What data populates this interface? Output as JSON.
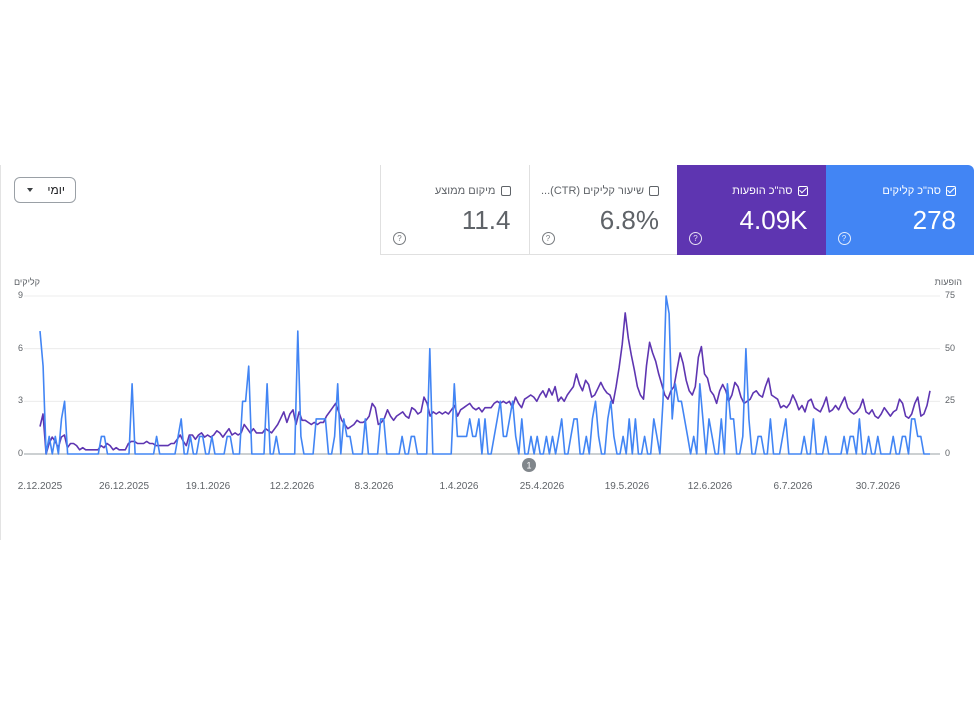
{
  "metrics": {
    "clicks": {
      "label": "סה\"כ קליקים",
      "value": "278",
      "checked": true,
      "color": "#4285f4"
    },
    "impressions": {
      "label": "סה\"כ הופעות",
      "value": "4.09K",
      "checked": true,
      "color": "#5e35b1"
    },
    "ctr": {
      "label": "...(CTR) שיעור קליקים",
      "value": "6.8%",
      "checked": false
    },
    "position": {
      "label": "מיקום ממוצע",
      "value": "11.4",
      "checked": false
    }
  },
  "help_glyph": "?",
  "dropdown": {
    "label": "יומי"
  },
  "chart_data": {
    "type": "line",
    "left_axis_title": "קליקים",
    "right_axis_title": "הופעות",
    "y_left_ticks": [
      "9",
      "6",
      "3",
      "0"
    ],
    "y_right_ticks": [
      "75",
      "50",
      "25",
      "0"
    ],
    "y_left_range": [
      0,
      9
    ],
    "y_right_range": [
      0,
      75
    ],
    "x_tick_labels": [
      "2.12.2025",
      "26.12.2025",
      "19.1.2026",
      "12.2.2026",
      "8.3.2026",
      "1.4.2026",
      "25.4.2026",
      "19.5.2026",
      "12.6.2026",
      "6.7.2026",
      "30.7.2026"
    ],
    "annotation": {
      "label": "1",
      "near": "25.4.2026"
    },
    "grid": true,
    "series": [
      {
        "name": "סה\"כ קליקים",
        "axis": "left",
        "color": "#4285f4",
        "values": [
          7,
          5,
          0,
          1,
          0,
          1,
          0,
          2,
          3,
          0,
          0,
          0,
          0,
          0,
          0,
          0,
          0,
          0,
          0,
          0,
          1,
          1,
          0,
          0,
          0,
          0,
          0,
          0,
          0,
          0,
          4,
          0,
          0,
          0,
          0,
          0,
          0,
          0,
          1,
          0,
          0,
          0,
          0,
          0,
          0,
          1,
          2,
          0,
          0,
          1,
          0,
          0,
          1,
          1,
          0,
          0,
          1,
          0,
          0,
          0,
          0,
          1,
          1,
          0,
          0,
          0,
          3,
          3,
          5,
          0,
          0,
          0,
          0,
          0,
          4,
          0,
          0,
          1,
          0,
          0,
          0,
          0,
          0,
          0,
          7,
          1,
          0,
          0,
          0,
          0,
          2,
          2,
          2,
          2,
          0,
          0,
          1,
          4,
          0,
          2,
          1,
          1,
          0,
          0,
          0,
          0,
          2,
          0,
          0,
          0,
          0,
          2,
          2,
          0,
          0,
          0,
          0,
          0,
          1,
          0,
          0,
          1,
          1,
          0,
          0,
          0,
          0,
          6,
          0,
          0,
          0,
          0,
          0,
          0,
          0,
          4,
          1,
          1,
          1,
          1,
          2,
          1,
          1,
          2,
          0,
          2,
          0,
          0,
          1,
          2,
          3,
          1,
          1,
          2,
          3,
          1,
          0,
          2,
          0,
          0,
          1,
          0,
          1,
          0,
          0,
          1,
          0,
          1,
          0,
          1,
          2,
          0,
          0,
          1,
          2,
          2,
          0,
          0,
          1,
          0,
          2,
          3,
          1,
          0,
          0,
          2,
          3,
          1,
          0,
          0,
          1,
          0,
          2,
          0,
          2,
          0,
          0,
          1,
          0,
          0,
          2,
          1,
          0,
          3,
          9,
          8,
          2,
          4,
          3,
          3,
          2,
          1,
          0,
          1,
          0,
          4,
          2,
          0,
          2,
          1,
          0,
          0,
          2,
          0,
          4,
          2,
          2,
          0,
          0,
          1,
          6,
          2,
          0,
          0,
          1,
          1,
          0,
          0,
          2,
          0,
          0,
          0,
          1,
          2,
          0,
          0,
          0,
          0,
          0,
          1,
          0,
          0,
          2,
          0,
          0,
          0,
          1,
          0,
          0,
          0,
          0,
          0,
          1,
          0,
          1,
          1,
          0,
          2,
          0,
          0,
          1,
          0,
          0,
          1,
          0,
          0,
          0,
          0,
          1,
          0,
          0,
          1,
          1,
          0,
          2,
          2,
          1,
          1,
          0,
          0,
          0
        ]
      },
      {
        "name": "סה\"כ הופעות",
        "axis": "right",
        "color": "#5e35b1",
        "values": [
          13,
          19,
          0,
          5,
          8,
          6,
          3,
          8,
          9,
          3,
          5,
          5,
          4,
          2,
          3,
          2,
          2,
          2,
          2,
          2,
          4,
          3,
          5,
          4,
          2,
          3,
          2,
          2,
          2,
          5,
          6,
          6,
          5,
          5,
          5,
          6,
          5,
          5,
          4,
          4,
          4,
          4,
          4,
          5,
          5,
          7,
          9,
          6,
          4,
          9,
          9,
          7,
          9,
          10,
          8,
          9,
          8,
          9,
          11,
          10,
          8,
          10,
          12,
          9,
          10,
          9,
          10,
          14,
          12,
          10,
          12,
          10,
          10,
          10,
          12,
          11,
          10,
          12,
          14,
          17,
          20,
          15,
          19,
          21,
          14,
          20,
          16,
          16,
          15,
          14,
          15,
          14,
          15,
          15,
          18,
          20,
          22,
          24,
          20,
          16,
          14,
          12,
          13,
          14,
          16,
          15,
          15,
          16,
          18,
          24,
          22,
          14,
          15,
          17,
          21,
          18,
          16,
          18,
          19,
          20,
          18,
          17,
          22,
          21,
          19,
          20,
          27,
          24,
          18,
          20,
          19,
          20,
          19,
          20,
          19,
          21,
          23,
          18,
          21,
          22,
          23,
          24,
          22,
          21,
          22,
          20,
          22,
          22,
          22,
          24,
          25,
          24,
          25,
          24,
          25,
          22,
          27,
          24,
          22,
          26,
          27,
          28,
          27,
          25,
          28,
          30,
          27,
          31,
          28,
          32,
          25,
          27,
          25,
          28,
          30,
          32,
          38,
          33,
          30,
          35,
          33,
          27,
          28,
          31,
          34,
          31,
          29,
          28,
          24,
          32,
          41,
          52,
          67,
          55,
          47,
          40,
          32,
          28,
          26,
          42,
          53,
          48,
          44,
          38,
          33,
          28,
          26,
          30,
          32,
          40,
          48,
          43,
          35,
          30,
          28,
          32,
          46,
          51,
          38,
          36,
          30,
          28,
          24,
          30,
          33,
          30,
          25,
          28,
          34,
          32,
          27,
          24,
          25,
          26,
          29,
          30,
          28,
          27,
          32,
          36,
          28,
          27,
          26,
          22,
          23,
          22,
          24,
          28,
          25,
          21,
          23,
          20,
          25,
          26,
          22,
          21,
          20,
          23,
          27,
          20,
          21,
          23,
          21,
          24,
          27,
          22,
          20,
          19,
          20,
          22,
          26,
          20,
          19,
          21,
          18,
          17,
          19,
          22,
          20,
          18,
          20,
          21,
          26,
          24,
          18,
          17,
          19,
          24,
          27,
          18,
          19,
          23,
          30
        ]
      }
    ]
  }
}
